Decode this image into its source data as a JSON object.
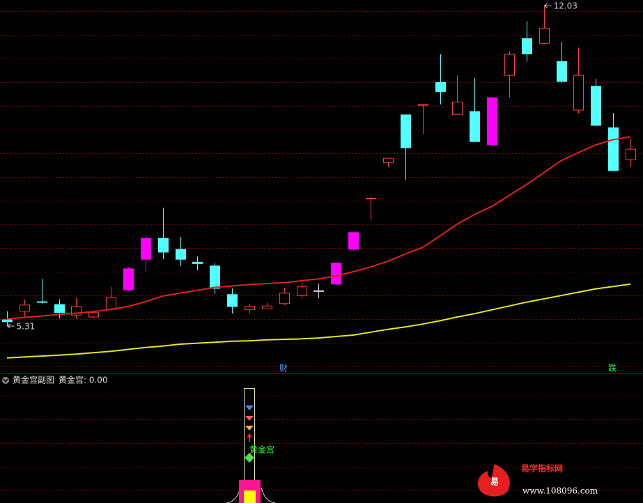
{
  "chart_data": {
    "type": "candlestick",
    "ylim": [
      4.33,
      12.15
    ],
    "open": [
      5.44,
      5.62,
      5.82,
      5.76,
      5.54,
      5.5,
      5.66,
      6.07,
      6.71,
      7.15,
      6.92,
      6.65,
      6.57,
      5.97,
      5.65,
      5.67,
      5.78,
      5.95,
      6.05,
      6.19,
      6.92,
      7.98,
      8.74,
      9.74,
      9.94,
      10.42,
      9.75,
      9.81,
      9.11,
      10.57,
      11.34,
      11.24,
      10.86,
      9.84,
      10.34,
      9.47,
      8.8
    ],
    "high": [
      5.62,
      5.87,
      6.3,
      5.87,
      5.9,
      5.63,
      6.13,
      6.54,
      7.21,
      7.79,
      7.18,
      6.77,
      6.63,
      6.1,
      5.78,
      5.8,
      6.11,
      6.24,
      6.2,
      6.63,
      7.28,
      8.01,
      8.83,
      9.74,
      9.97,
      11.01,
      10.57,
      10.51,
      10.1,
      11.07,
      11.71,
      12.03,
      11.27,
      11.15,
      10.5,
      9.78,
      9.25
    ],
    "low": [
      5.31,
      5.5,
      5.78,
      5.47,
      5.46,
      5.47,
      5.63,
      6.04,
      6.45,
      6.71,
      6.57,
      6.48,
      5.98,
      5.57,
      5.57,
      5.66,
      5.75,
      5.89,
      5.89,
      6.17,
      6.89,
      7.52,
      8.64,
      8.38,
      9.34,
      9.96,
      9.74,
      9.18,
      9.08,
      10.1,
      10.86,
      11.23,
      10.42,
      9.77,
      9.5,
      8.57,
      8.64
    ],
    "close": [
      5.4,
      5.75,
      5.81,
      5.59,
      5.72,
      5.59,
      5.91,
      6.51,
      7.15,
      6.86,
      6.71,
      6.62,
      6.1,
      5.72,
      5.72,
      5.73,
      6.0,
      6.14,
      6.05,
      6.63,
      7.27,
      7.99,
      8.83,
      9.05,
      9.96,
      10.23,
      10.01,
      9.18,
      10.1,
      11.01,
      11.02,
      11.56,
      10.44,
      10.57,
      9.52,
      8.57,
      9.02
    ],
    "colors": [
      "#54ffff",
      "#ff3c3c",
      "#54ffff",
      "#54ffff",
      "#ff3c3c",
      "#ff3c3c",
      "#ff3c3c",
      "#ff00ff",
      "#ff00ff",
      "#54ffff",
      "#54ffff",
      "#54ffff",
      "#54ffff",
      "#54ffff",
      "#ff3c3c",
      "#ff3c3c",
      "#ff3c3c",
      "#ff3c3c",
      "#dddddd",
      "#ff00ff",
      "#ff00ff",
      "#ff3c3c",
      "#ff3c3c",
      "#54ffff",
      "#ff3c3c",
      "#54ffff",
      "#ff3c3c",
      "#54ffff",
      "#ff00ff",
      "#ff3c3c",
      "#54ffff",
      "#ff3c3c",
      "#54ffff",
      "#ff3c3c",
      "#54ffff",
      "#54ffff",
      "#ff3c3c"
    ],
    "up_color": "#ff3c3c",
    "series": [
      {
        "color": "#e61e1e",
        "values": [
          5.46,
          5.49,
          5.52,
          5.55,
          5.58,
          5.61,
          5.66,
          5.72,
          5.82,
          5.94,
          6.0,
          6.06,
          6.12,
          6.15,
          6.18,
          6.2,
          6.22,
          6.26,
          6.3,
          6.36,
          6.45,
          6.55,
          6.67,
          6.82,
          6.96,
          7.2,
          7.45,
          7.65,
          7.82,
          8.05,
          8.28,
          8.53,
          8.78,
          8.95,
          9.11,
          9.22,
          9.28
        ]
      },
      {
        "color": "#e6e61e",
        "values": [
          4.64,
          4.66,
          4.68,
          4.7,
          4.72,
          4.75,
          4.78,
          4.82,
          4.86,
          4.89,
          4.93,
          4.95,
          4.97,
          4.99,
          5.0,
          5.02,
          5.03,
          5.04,
          5.06,
          5.09,
          5.12,
          5.18,
          5.24,
          5.29,
          5.35,
          5.42,
          5.5,
          5.57,
          5.65,
          5.73,
          5.81,
          5.88,
          5.95,
          6.02,
          6.09,
          6.14,
          6.19
        ]
      }
    ],
    "annotations": [
      {
        "text": "12.03",
        "value": 12.03
      },
      {
        "text": "5.31",
        "value": 5.31
      }
    ],
    "markers": [
      "财",
      "跌"
    ]
  },
  "subpanel": {
    "title": "黄金宫副图",
    "indicator": "黄金宫: 0.00",
    "signal": "黄金宫"
  },
  "watermark": {
    "logo": "易",
    "name": "易学指标网",
    "url": "www.108096.com"
  }
}
